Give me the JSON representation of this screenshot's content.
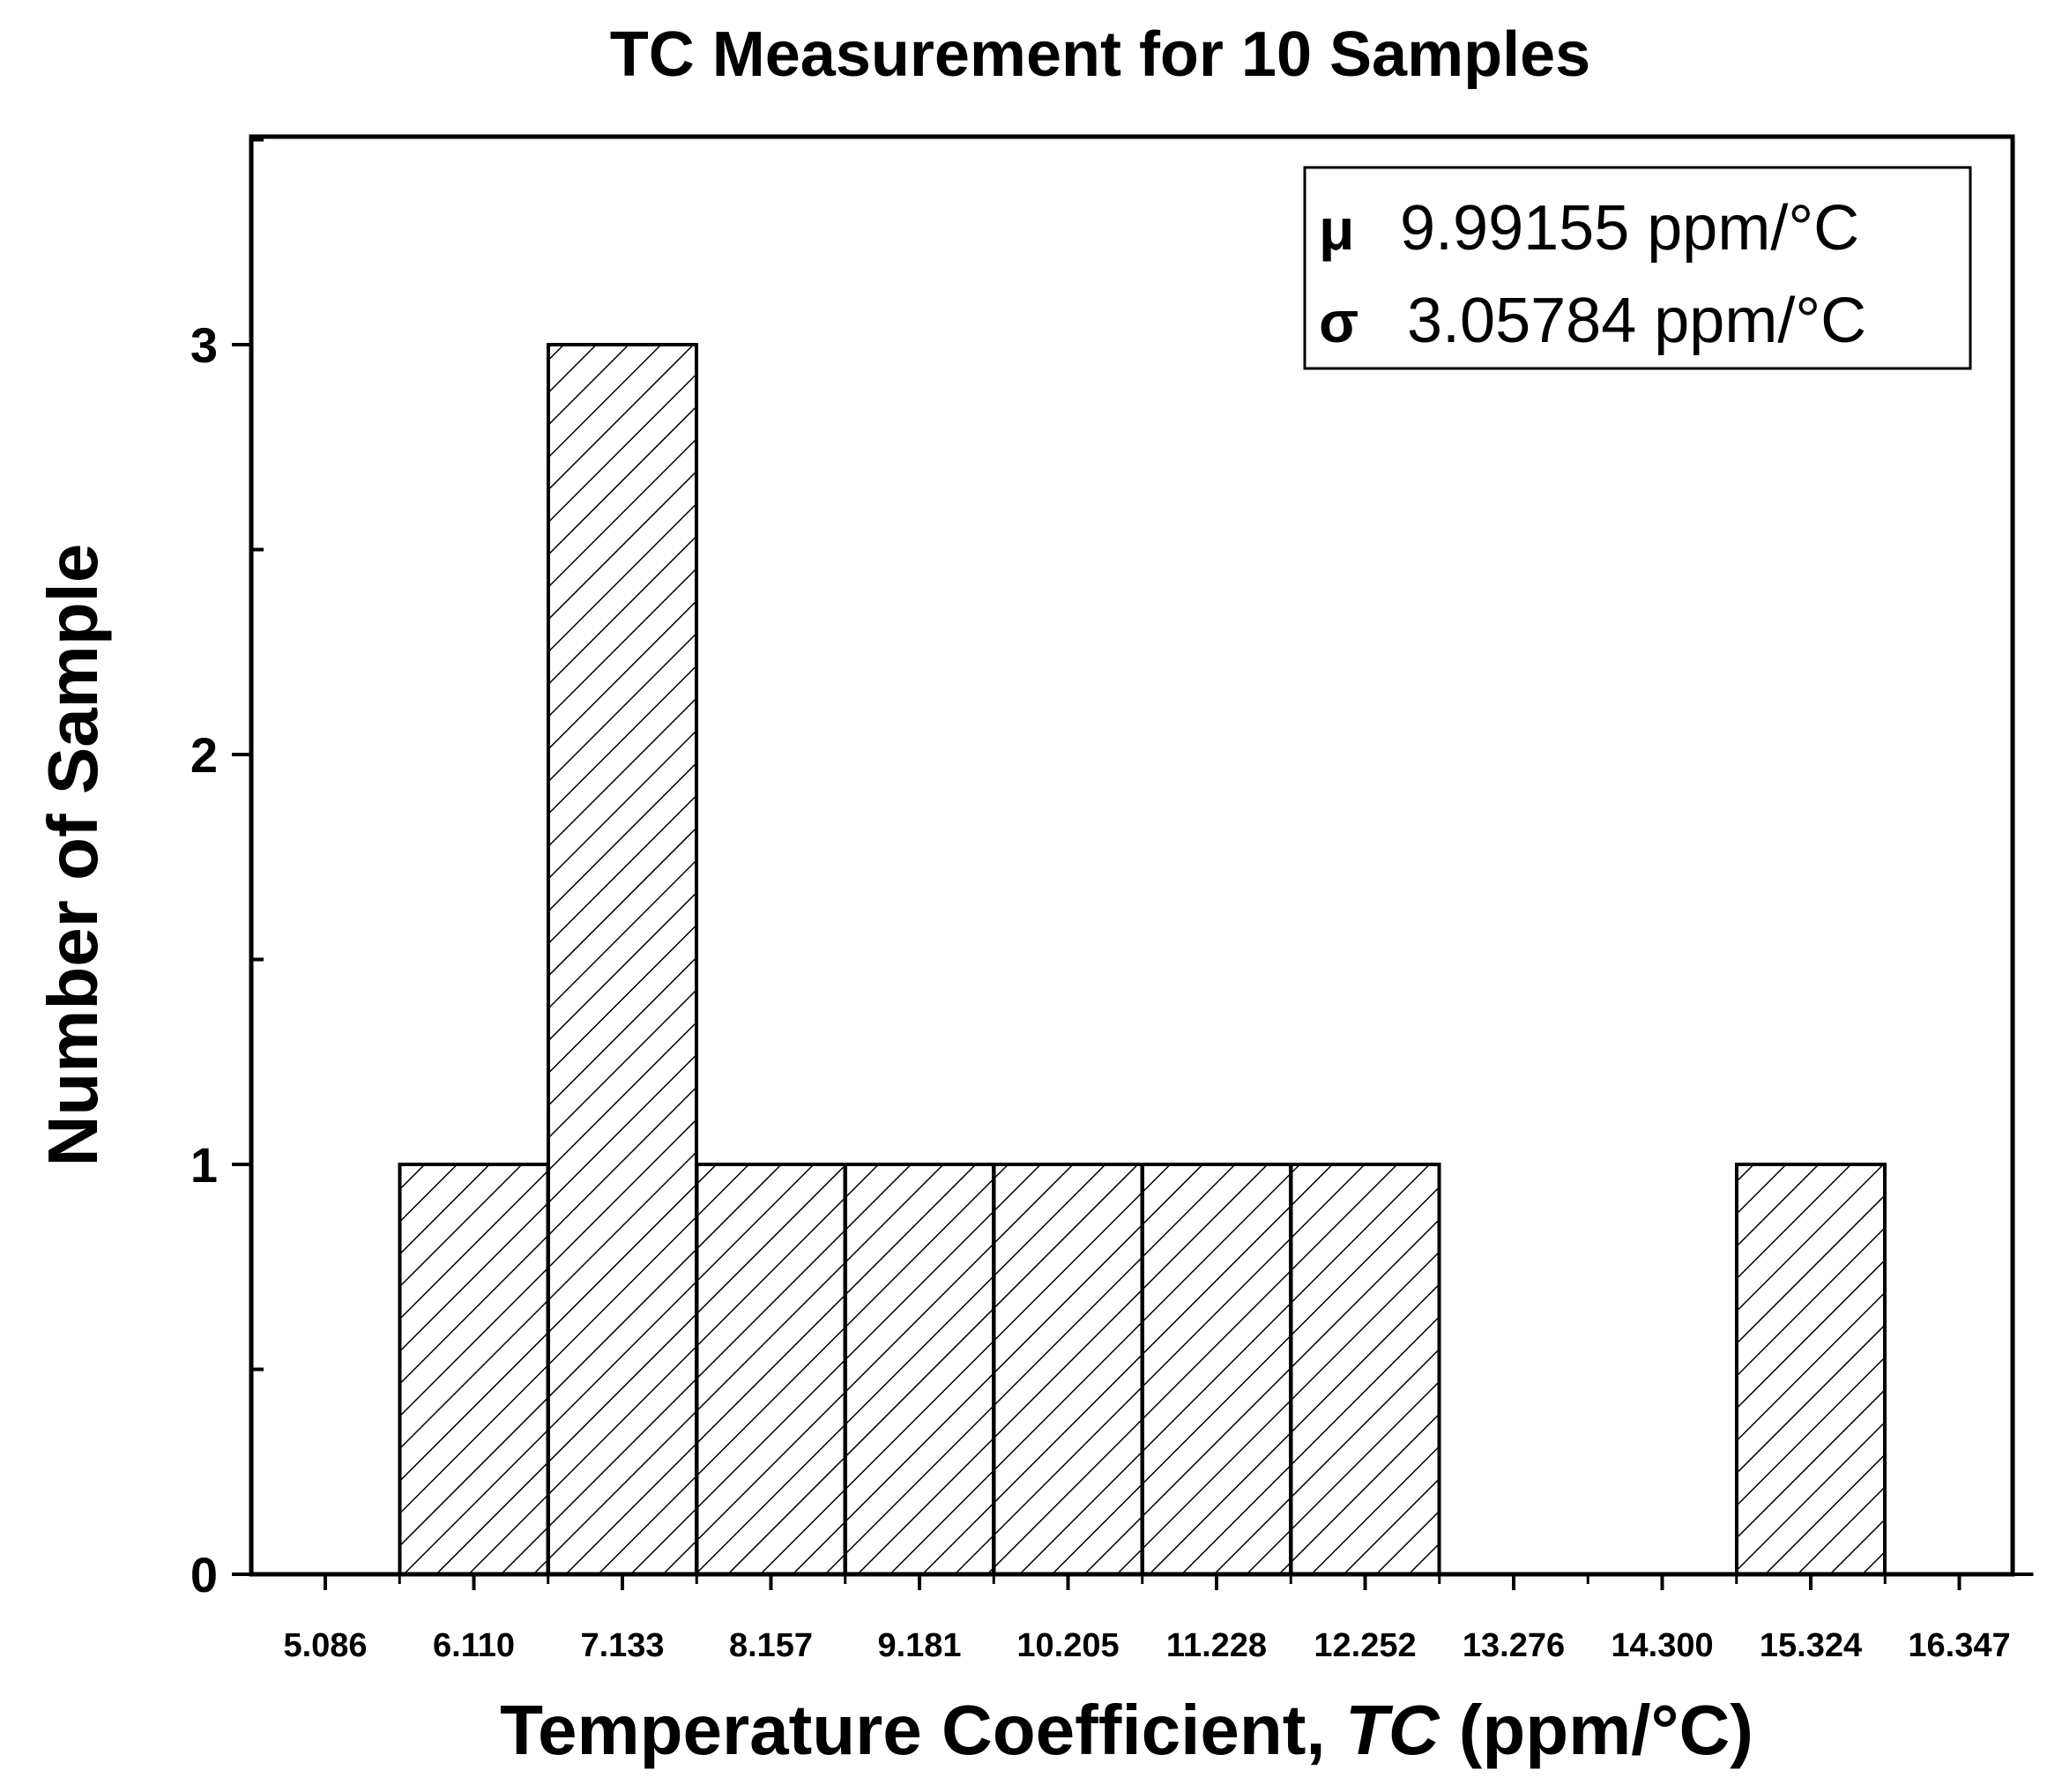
{
  "chart_data": {
    "type": "bar",
    "subtype": "histogram",
    "title": "TC Measurement for 10 Samples",
    "xlabel_main": "Temperature Coefficient, ",
    "xlabel_symbol": "TC",
    "xlabel_unit": " (ppm/°C)",
    "ylabel": "Number of Sample",
    "x_ticks": [
      "5.086",
      "6.110",
      "7.133",
      "8.157",
      "9.181",
      "10.205",
      "11.228",
      "12.252",
      "13.276",
      "14.300",
      "15.324",
      "16.347"
    ],
    "y_ticks": [
      "0",
      "1",
      "2",
      "3"
    ],
    "ylim": [
      0,
      3.5
    ],
    "bins": [
      {
        "center": 5.086,
        "count": 0
      },
      {
        "center": 6.11,
        "count": 1
      },
      {
        "center": 7.133,
        "count": 3
      },
      {
        "center": 8.157,
        "count": 1
      },
      {
        "center": 9.181,
        "count": 1
      },
      {
        "center": 10.205,
        "count": 1
      },
      {
        "center": 11.228,
        "count": 1
      },
      {
        "center": 12.252,
        "count": 1
      },
      {
        "center": 13.276,
        "count": 0
      },
      {
        "center": 14.3,
        "count": 0
      },
      {
        "center": 15.324,
        "count": 1
      },
      {
        "center": 16.347,
        "count": 0
      }
    ],
    "fill_pattern": "diagonal-hatch",
    "legend": {
      "placement": "top-right",
      "mu_symbol": "μ",
      "mu_value": "9.99155 ppm/°C",
      "sigma_symbol": "σ",
      "sigma_value": "3.05784 ppm/°C"
    }
  }
}
